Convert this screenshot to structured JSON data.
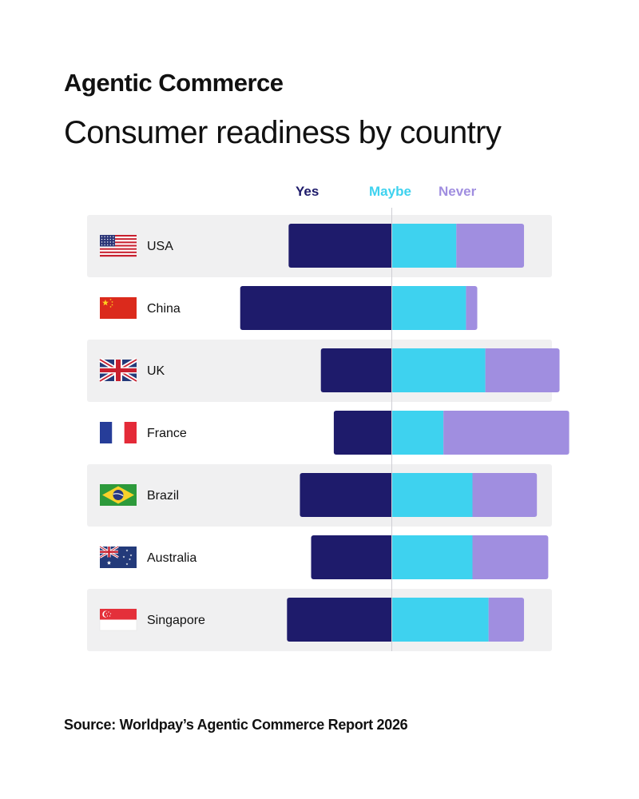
{
  "header": {
    "kicker": "Agentic Commerce",
    "title": "Consumer readiness by country"
  },
  "legend": {
    "yes": "Yes",
    "maybe": "Maybe",
    "never": "Never"
  },
  "colors": {
    "yes": "#1e1b6b",
    "maybe": "#3ed2ef",
    "never": "#a08ee0",
    "row_bg": "#f0f0f1",
    "center_line": "#cfcfd4"
  },
  "footer": {
    "source": "Source: Worldpay’s Agentic Commerce Report 2026"
  },
  "chart_data": {
    "type": "bar",
    "stacked": true,
    "orientation": "horizontal",
    "title": "Consumer readiness by country",
    "xlabel": "",
    "ylabel": "",
    "legend_position": "top",
    "series_names": [
      "Yes",
      "Maybe",
      "Never"
    ],
    "categories": [
      "USA",
      "China",
      "UK",
      "France",
      "Brazil",
      "Australia",
      "Singapore"
    ],
    "flags": [
      "us-flag-icon",
      "china-flag-icon",
      "uk-flag-icon",
      "france-flag-icon",
      "brazil-flag-icon",
      "australia-flag-icon",
      "singapore-flag-icon"
    ],
    "series": [
      {
        "name": "Yes",
        "values": [
          32,
          47,
          22,
          18,
          28.5,
          25,
          32.5
        ]
      },
      {
        "name": "Maybe",
        "values": [
          20,
          23,
          29,
          16,
          25,
          25,
          30
        ]
      },
      {
        "name": "Never",
        "values": [
          21,
          3.5,
          23,
          39,
          20,
          23.5,
          11
        ]
      }
    ],
    "diverging_center": "between Yes and Maybe"
  }
}
